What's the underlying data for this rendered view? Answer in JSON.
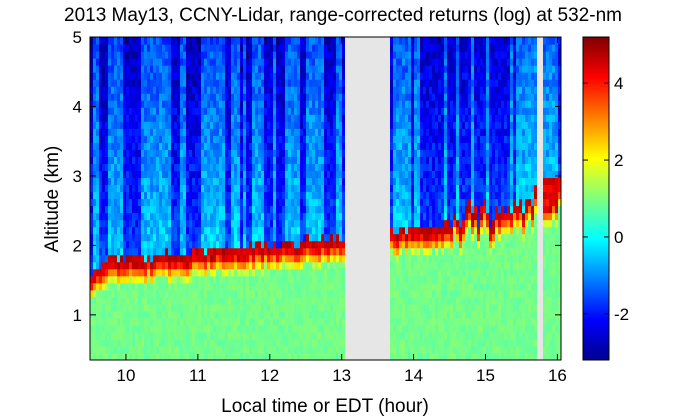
{
  "chart_data": {
    "type": "heatmap",
    "title": "2013 May13, CCNY-Lidar, range-corrected returns (log) at 532-nm",
    "xlabel": "Local time or EDT (hour)",
    "ylabel": "Altitude (km)",
    "xlim": [
      9.5,
      16.05
    ],
    "ylim": [
      0.35,
      5.0
    ],
    "xticks": [
      10,
      11,
      12,
      13,
      14,
      15,
      16
    ],
    "yticks": [
      1,
      2,
      3,
      4,
      5
    ],
    "colorbar": {
      "range": [
        -3.2,
        5.2
      ],
      "ticks": [
        -2,
        0,
        2,
        4
      ],
      "colormap": "jet"
    },
    "data_gaps_hours": [
      [
        13.05,
        13.68
      ],
      [
        15.72,
        15.8
      ]
    ],
    "boundary_layer_top_km": {
      "x": [
        9.5,
        9.8,
        10.2,
        10.6,
        11.0,
        11.5,
        12.0,
        12.5,
        12.9,
        13.05,
        13.7,
        14.0,
        14.5,
        14.9,
        15.3,
        15.7,
        16.05
      ],
      "y": [
        1.45,
        1.7,
        1.72,
        1.75,
        1.8,
        1.85,
        1.9,
        1.95,
        2.0,
        2.0,
        2.1,
        2.12,
        2.2,
        2.3,
        2.4,
        2.6,
        2.75
      ]
    }
  }
}
